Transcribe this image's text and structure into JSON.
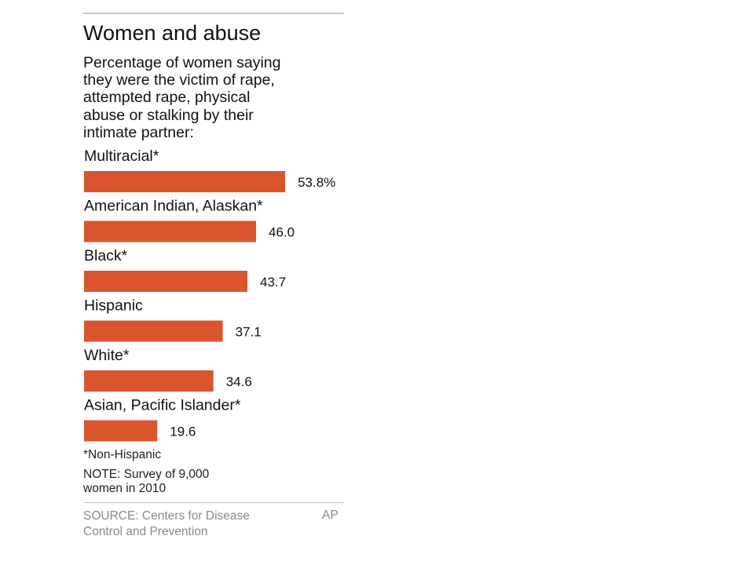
{
  "chart_data": {
    "type": "bar",
    "orientation": "horizontal",
    "title": "Women and abuse",
    "subtitle": "Percentage of women saying\nthey were the victim of rape,\nattempted rape, physical\nabuse or stalking by their\nintimate partner:",
    "categories": [
      "Multiracial*",
      "American Indian, Alaskan*",
      "Black*",
      "Hispanic",
      "White*",
      "Asian, Pacific Islander*"
    ],
    "values": [
      53.8,
      46.0,
      43.7,
      37.1,
      34.6,
      19.6
    ],
    "value_labels": [
      "53.8%",
      "46.0",
      "43.7",
      "37.1",
      "34.6",
      "19.6"
    ],
    "xlim": [
      0,
      100
    ],
    "grid": false,
    "legend": "none",
    "bar_color": "#d9552e"
  },
  "footer": {
    "footnote": "*Non-Hispanic",
    "note": "NOTE: Survey of 9,000\nwomen in 2010",
    "source": "SOURCE: Centers for Disease\nControl and Prevention",
    "credit": "AP"
  }
}
